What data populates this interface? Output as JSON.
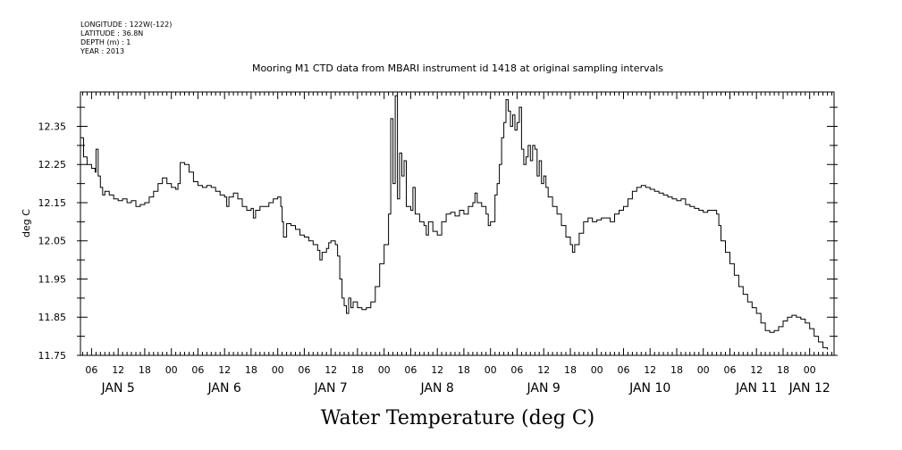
{
  "header": {
    "longitude": "LONGITUDE : 122W(-122)",
    "latitude": "LATITUDE : 36.8N",
    "depth": "DEPTH (m) : 1",
    "year": "YEAR : 2013",
    "title": "Mooring M1 CTD data from MBARI instrument id 1418 at original sampling intervals"
  },
  "chart_data": {
    "type": "line",
    "title": "Mooring M1 CTD data from MBARI instrument id 1418 at original sampling intervals",
    "xlabel": "Water Temperature (deg C)",
    "ylabel": "deg C",
    "x_unit": "hours since JAN 5 00:00 2013",
    "xlim": [
      3.5,
      173.5
    ],
    "ylim": [
      11.75,
      12.44
    ],
    "yticks": [
      11.75,
      11.85,
      11.95,
      12.05,
      12.15,
      12.25,
      12.35
    ],
    "ytick_labels": [
      "11.75",
      "11.85",
      "11.95",
      "12.05",
      "12.15",
      "12.25",
      "12.35"
    ],
    "xtick_hour_labels": [
      "06",
      "12",
      "18",
      "00",
      "06",
      "12",
      "18",
      "00",
      "06",
      "12",
      "18",
      "00",
      "06",
      "12",
      "18",
      "00",
      "06",
      "12",
      "18",
      "00",
      "06",
      "12",
      "18",
      "00",
      "06",
      "12",
      "18",
      "00"
    ],
    "day_labels": [
      {
        "label": "JAN 5",
        "x": 12
      },
      {
        "label": "JAN 6",
        "x": 36
      },
      {
        "label": "JAN 7",
        "x": 60
      },
      {
        "label": "JAN 8",
        "x": 84
      },
      {
        "label": "JAN 9",
        "x": 108
      },
      {
        "label": "JAN 10",
        "x": 132
      },
      {
        "label": "JAN 11",
        "x": 156
      },
      {
        "label": "JAN 12",
        "x": 168
      }
    ],
    "grid": false,
    "series": [
      {
        "values": [
          [
            3.5,
            12.32
          ],
          [
            4.2,
            12.27
          ],
          [
            5,
            12.25
          ],
          [
            6,
            12.24
          ],
          [
            6.8,
            12.23
          ],
          [
            7,
            12.29
          ],
          [
            7.5,
            12.22
          ],
          [
            8,
            12.19
          ],
          [
            8.5,
            12.17
          ],
          [
            9,
            12.18
          ],
          [
            10,
            12.17
          ],
          [
            11,
            12.16
          ],
          [
            12,
            12.155
          ],
          [
            13,
            12.16
          ],
          [
            14,
            12.15
          ],
          [
            15,
            12.155
          ],
          [
            16,
            12.14
          ],
          [
            17,
            12.145
          ],
          [
            18,
            12.15
          ],
          [
            19,
            12.165
          ],
          [
            20,
            12.18
          ],
          [
            21,
            12.2
          ],
          [
            22,
            12.215
          ],
          [
            23,
            12.2
          ],
          [
            24,
            12.19
          ],
          [
            25,
            12.185
          ],
          [
            25.5,
            12.2
          ],
          [
            26,
            12.255
          ],
          [
            27,
            12.25
          ],
          [
            28,
            12.23
          ],
          [
            29,
            12.205
          ],
          [
            30,
            12.195
          ],
          [
            31,
            12.19
          ],
          [
            32,
            12.195
          ],
          [
            33,
            12.19
          ],
          [
            34,
            12.18
          ],
          [
            35,
            12.17
          ],
          [
            36,
            12.165
          ],
          [
            36.5,
            12.14
          ],
          [
            37,
            12.165
          ],
          [
            38,
            12.175
          ],
          [
            39,
            12.16
          ],
          [
            40,
            12.14
          ],
          [
            41,
            12.13
          ],
          [
            42,
            12.135
          ],
          [
            42.5,
            12.11
          ],
          [
            43,
            12.13
          ],
          [
            44,
            12.14
          ],
          [
            45,
            12.14
          ],
          [
            46,
            12.15
          ],
          [
            47,
            12.16
          ],
          [
            48,
            12.165
          ],
          [
            48.7,
            12.14
          ],
          [
            49,
            12.1
          ],
          [
            49.3,
            12.06
          ],
          [
            50,
            12.095
          ],
          [
            51,
            12.09
          ],
          [
            52,
            12.08
          ],
          [
            53,
            12.065
          ],
          [
            54,
            12.06
          ],
          [
            55,
            12.05
          ],
          [
            56,
            12.04
          ],
          [
            57,
            12.025
          ],
          [
            57.5,
            12.0
          ],
          [
            58,
            12.02
          ],
          [
            59,
            12.03
          ],
          [
            59.5,
            12.045
          ],
          [
            60,
            12.05
          ],
          [
            61,
            12.04
          ],
          [
            61.5,
            12.01
          ],
          [
            62,
            11.95
          ],
          [
            62.5,
            11.9
          ],
          [
            63,
            11.88
          ],
          [
            63.5,
            11.86
          ],
          [
            64,
            11.9
          ],
          [
            64.5,
            11.875
          ],
          [
            65,
            11.89
          ],
          [
            66,
            11.875
          ],
          [
            67,
            11.87
          ],
          [
            68,
            11.875
          ],
          [
            69,
            11.89
          ],
          [
            70,
            11.93
          ],
          [
            71,
            11.99
          ],
          [
            72,
            12.04
          ],
          [
            73,
            12.12
          ],
          [
            73.5,
            12.37
          ],
          [
            74,
            12.2
          ],
          [
            74.5,
            12.43
          ],
          [
            75,
            12.16
          ],
          [
            75.5,
            12.28
          ],
          [
            76,
            12.22
          ],
          [
            76.5,
            12.26
          ],
          [
            77,
            12.14
          ],
          [
            78,
            12.13
          ],
          [
            78.5,
            12.19
          ],
          [
            79,
            12.12
          ],
          [
            80,
            12.1
          ],
          [
            81,
            12.09
          ],
          [
            81.5,
            12.065
          ],
          [
            82,
            12.1
          ],
          [
            83,
            12.075
          ],
          [
            84,
            12.065
          ],
          [
            85,
            12.1
          ],
          [
            86,
            12.12
          ],
          [
            87,
            12.125
          ],
          [
            88,
            12.115
          ],
          [
            89,
            12.13
          ],
          [
            90,
            12.12
          ],
          [
            91,
            12.14
          ],
          [
            92,
            12.15
          ],
          [
            92.5,
            12.175
          ],
          [
            93,
            12.15
          ],
          [
            94,
            12.14
          ],
          [
            95,
            12.12
          ],
          [
            95.5,
            12.09
          ],
          [
            96,
            12.1
          ],
          [
            97,
            12.17
          ],
          [
            97.5,
            12.2
          ],
          [
            98,
            12.25
          ],
          [
            98.5,
            12.32
          ],
          [
            99,
            12.36
          ],
          [
            99.5,
            12.42
          ],
          [
            100,
            12.39
          ],
          [
            100.5,
            12.35
          ],
          [
            101,
            12.38
          ],
          [
            101.5,
            12.34
          ],
          [
            102,
            12.36
          ],
          [
            102.5,
            12.4
          ],
          [
            103,
            12.29
          ],
          [
            103.5,
            12.25
          ],
          [
            104,
            12.27
          ],
          [
            104.5,
            12.3
          ],
          [
            105,
            12.26
          ],
          [
            105.5,
            12.3
          ],
          [
            106,
            12.29
          ],
          [
            106.5,
            12.22
          ],
          [
            107,
            12.26
          ],
          [
            107.5,
            12.2
          ],
          [
            108,
            12.22
          ],
          [
            108.5,
            12.19
          ],
          [
            109,
            12.165
          ],
          [
            110,
            12.14
          ],
          [
            111,
            12.12
          ],
          [
            112,
            12.09
          ],
          [
            113,
            12.06
          ],
          [
            114,
            12.04
          ],
          [
            114.5,
            12.02
          ],
          [
            115,
            12.04
          ],
          [
            116,
            12.07
          ],
          [
            117,
            12.1
          ],
          [
            118,
            12.11
          ],
          [
            119,
            12.1
          ],
          [
            120,
            12.105
          ],
          [
            121,
            12.11
          ],
          [
            122,
            12.11
          ],
          [
            123,
            12.1
          ],
          [
            124,
            12.12
          ],
          [
            125,
            12.13
          ],
          [
            126,
            12.14
          ],
          [
            127,
            12.16
          ],
          [
            128,
            12.18
          ],
          [
            129,
            12.19
          ],
          [
            130,
            12.195
          ],
          [
            131,
            12.19
          ],
          [
            132,
            12.185
          ],
          [
            133,
            12.18
          ],
          [
            134,
            12.175
          ],
          [
            135,
            12.17
          ],
          [
            136,
            12.165
          ],
          [
            137,
            12.16
          ],
          [
            138,
            12.155
          ],
          [
            139,
            12.16
          ],
          [
            140,
            12.145
          ],
          [
            141,
            12.14
          ],
          [
            142,
            12.135
          ],
          [
            143,
            12.13
          ],
          [
            144,
            12.125
          ],
          [
            145,
            12.13
          ],
          [
            146,
            12.13
          ],
          [
            147,
            12.12
          ],
          [
            147.5,
            12.09
          ],
          [
            148,
            12.05
          ],
          [
            149,
            12.02
          ],
          [
            150,
            11.99
          ],
          [
            151,
            11.96
          ],
          [
            152,
            11.93
          ],
          [
            153,
            11.91
          ],
          [
            154,
            11.89
          ],
          [
            155,
            11.875
          ],
          [
            156,
            11.86
          ],
          [
            157,
            11.835
          ],
          [
            158,
            11.815
          ],
          [
            159,
            11.81
          ],
          [
            160,
            11.815
          ],
          [
            161,
            11.825
          ],
          [
            162,
            11.84
          ],
          [
            163,
            11.85
          ],
          [
            164,
            11.855
          ],
          [
            165,
            11.85
          ],
          [
            166,
            11.845
          ],
          [
            167,
            11.835
          ],
          [
            168,
            11.82
          ],
          [
            169,
            11.8
          ],
          [
            170,
            11.785
          ],
          [
            171,
            11.77
          ],
          [
            172,
            11.765
          ]
        ]
      }
    ]
  }
}
